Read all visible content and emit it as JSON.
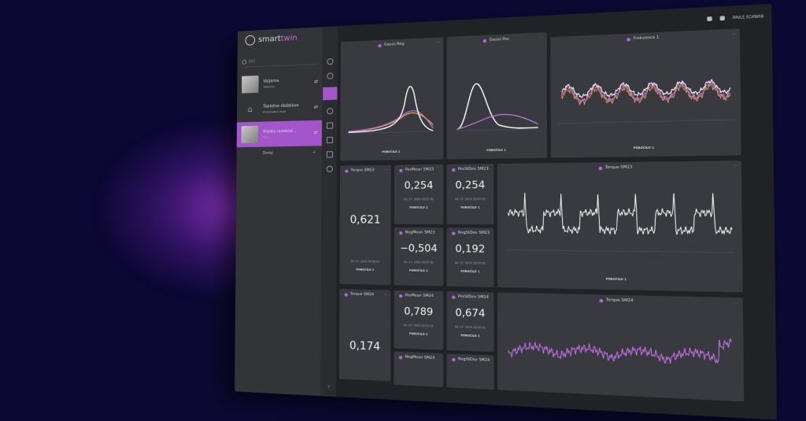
{
  "app": {
    "name_prefix": "smart",
    "name_accent": "twin"
  },
  "search": {
    "placeholder": "Išči"
  },
  "assets": [
    {
      "name": "Valjarna",
      "sub": "Valjarna"
    },
    {
      "name": "Toplotne obdelave",
      "sub": "Proizvodna linija"
    },
    {
      "name": "Visoko razsesal...",
      "sub": "Ru1"
    }
  ],
  "add_label": "Dodaj",
  "topbar": {
    "user": "PAVLE SCHWAB"
  },
  "cards": {
    "gauss_neg": {
      "title": "Gauss Neg",
      "footer": "POROČILO 1"
    },
    "gauss_pos": {
      "title": "Gauss Pos",
      "footer": "POROČILO 1"
    },
    "freq": {
      "title": "Frekvenca 1",
      "footer": "POROČILO 1"
    },
    "torque_sm23": {
      "title": "Torque SM23",
      "value": "0,621",
      "timestamp": "04. 27. 2023 04:40:01",
      "tag": "POROČILO 1"
    },
    "posmean_sm23": {
      "title": "PosMean SM23",
      "value": "0,254",
      "timestamp": "04. 27. 2023 03:57:01",
      "tag": "POROČILO 1"
    },
    "posstddev_sm23": {
      "title": "PosStDev SM23",
      "value": "0,254",
      "timestamp": "04. 27. 2023 03:57:01",
      "tag": "POROČILO 1"
    },
    "negmean_sm23": {
      "title": "NegMean SM23",
      "value": "−0,504",
      "timestamp": "04. 27. 2023 03:57:01",
      "tag": "POROČILO 1"
    },
    "negstddev_sm23": {
      "title": "NegStDev SM23",
      "value": "0,192",
      "timestamp": "04. 27. 2023 03:57:01",
      "tag": "POROČILO 1"
    },
    "torque_chart_sm23": {
      "title": "Torque SM23",
      "footer": "POROČILO 1"
    },
    "torque_sm24": {
      "title": "Torque SM24",
      "value": "0,174"
    },
    "posmean_sm24": {
      "title": "PosMean SM24",
      "value": "0,789",
      "timestamp": "04. 27. 2023 03:57:01",
      "tag": "POROČILO 1"
    },
    "posstddev_sm24": {
      "title": "PosStDev SM24",
      "value": "0,674",
      "timestamp": "04. 27. 2023 03:57:01",
      "tag": "POROČILO 1"
    },
    "negmean_sm24": {
      "title": "NegMean SM24"
    },
    "negstddev_sm24": {
      "title": "NegStDev SM24"
    },
    "torque_chart_sm24": {
      "title": "Torque SM24"
    }
  },
  "colors": {
    "accent": "#a356c9",
    "bg": "#0b0834",
    "panel": "#323438",
    "card": "#383a3f"
  }
}
